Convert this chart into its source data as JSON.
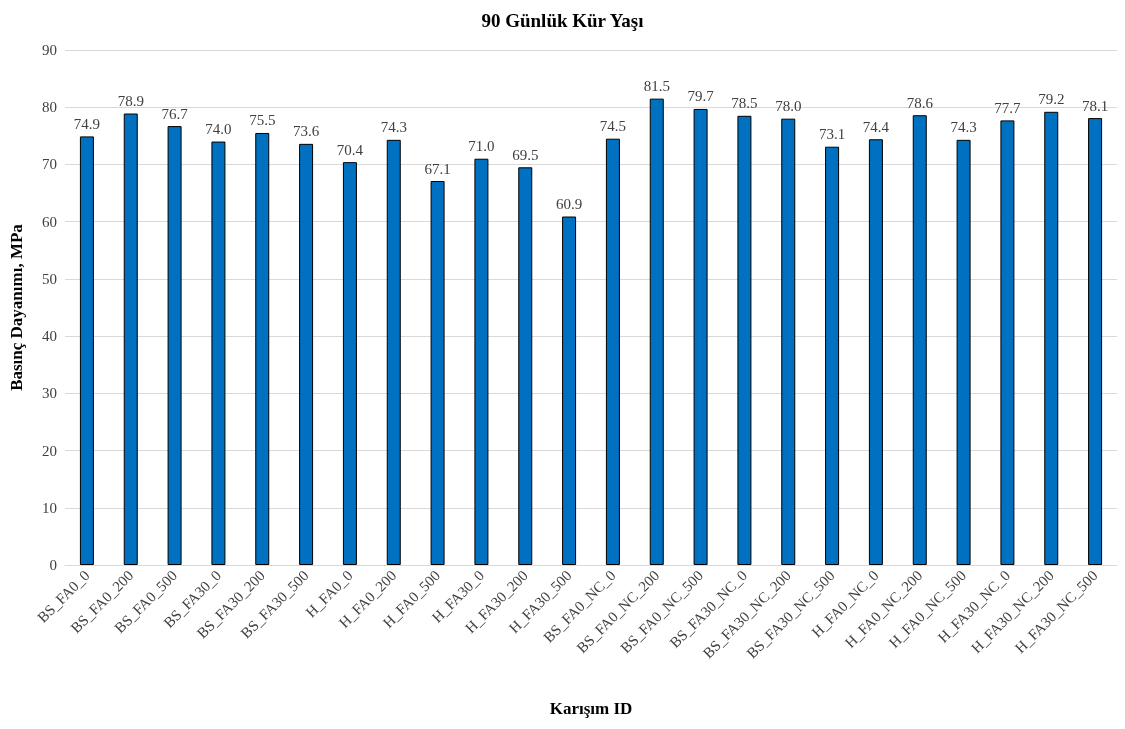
{
  "chart_data": {
    "type": "bar",
    "title": "90 Günlük Kür Yaşı",
    "xlabel": "Karışım ID",
    "ylabel": "Basınç Dayanımı, MPa",
    "categories": [
      "BS_FA0_0",
      "BS_FA0_200",
      "BS_FA0_500",
      "BS_FA30_0",
      "BS_FA30_200",
      "BS_FA30_500",
      "H_FA0_0",
      "H_FA0_200",
      "H_FA0_500",
      "H_FA30_0",
      "H_FA30_200",
      "H_FA30_500",
      "BS_FA0_NC_0",
      "BS_FA0_NC_200",
      "BS_FA0_NC_500",
      "BS_FA30_NC_0",
      "BS_FA30_NC_200",
      "BS_FA30_NC_500",
      "H_FA0_NC_0",
      "H_FA0_NC_200",
      "H_FA0_NC_500",
      "H_FA30_NC_0",
      "H_FA30_NC_200",
      "H_FA30_NC_500"
    ],
    "values": [
      74.9,
      78.9,
      76.7,
      74.0,
      75.5,
      73.6,
      70.4,
      74.3,
      67.1,
      71.0,
      69.5,
      60.9,
      74.5,
      81.5,
      79.7,
      78.5,
      78.0,
      73.1,
      74.4,
      78.6,
      74.3,
      77.7,
      79.2,
      78.1
    ],
    "value_labels": [
      "74.9",
      "78.9",
      "76.7",
      "74.0",
      "75.5",
      "73.6",
      "70.4",
      "74.3",
      "67.1",
      "71.0",
      "69.5",
      "60.9",
      "74.5",
      "81.5",
      "79.7",
      "78.5",
      "78.0",
      "73.1",
      "74.4",
      "78.6",
      "74.3",
      "77.7",
      "79.2",
      "78.1"
    ],
    "color": "#0070c0",
    "ylim": [
      0,
      90
    ],
    "yticks": [
      0,
      10,
      20,
      30,
      40,
      50,
      60,
      70,
      80,
      90
    ],
    "grid": "y"
  }
}
